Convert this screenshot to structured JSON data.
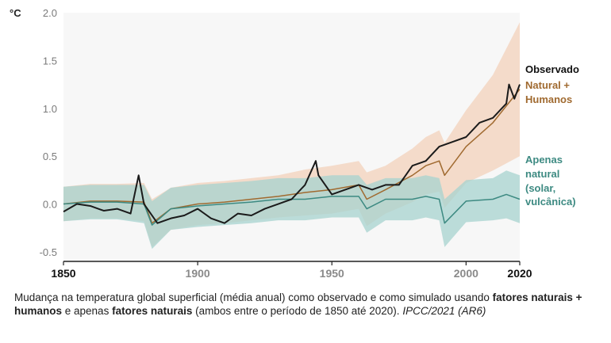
{
  "chart_data": {
    "type": "line",
    "y_unit_label": "°C",
    "ylim": [
      -0.6,
      2.0
    ],
    "yticks": [
      {
        "value": 2.0,
        "label": "2.0"
      },
      {
        "value": 1.5,
        "label": "1.5"
      },
      {
        "value": 1.0,
        "label": "1.0"
      },
      {
        "value": 0.5,
        "label": "0.5"
      },
      {
        "value": 0.0,
        "label": "0.0"
      },
      {
        "value": -0.5,
        "label": "-0.5"
      }
    ],
    "xlim": [
      1850,
      2020
    ],
    "xticks": [
      {
        "value": 1850,
        "label": "1850",
        "strong": true
      },
      {
        "value": 1900,
        "label": "1900",
        "strong": false
      },
      {
        "value": 1950,
        "label": "1950",
        "strong": false
      },
      {
        "value": 2000,
        "label": "2000",
        "strong": false
      },
      {
        "value": 2020,
        "label": "2020",
        "strong": true
      }
    ],
    "grid": false,
    "series": [
      {
        "name": "Observado",
        "color": "#1a1a1a",
        "x": [
          1850,
          1855,
          1860,
          1865,
          1870,
          1875,
          1878,
          1880,
          1885,
          1890,
          1895,
          1900,
          1905,
          1910,
          1915,
          1920,
          1925,
          1930,
          1935,
          1940,
          1944,
          1945,
          1950,
          1955,
          1960,
          1965,
          1970,
          1975,
          1980,
          1985,
          1990,
          1995,
          2000,
          2005,
          2010,
          2015,
          2016,
          2018,
          2020
        ],
        "y": [
          -0.08,
          0.0,
          -0.02,
          -0.07,
          -0.05,
          -0.1,
          0.3,
          0.0,
          -0.2,
          -0.15,
          -0.12,
          -0.05,
          -0.15,
          -0.2,
          -0.1,
          -0.12,
          -0.05,
          0.0,
          0.05,
          0.2,
          0.45,
          0.3,
          0.1,
          0.15,
          0.2,
          0.15,
          0.2,
          0.2,
          0.4,
          0.45,
          0.6,
          0.65,
          0.7,
          0.85,
          0.9,
          1.05,
          1.25,
          1.1,
          1.25
        ]
      },
      {
        "name": "Natural + Humanos",
        "color": "#a06a30",
        "band_color": "#f3d2bb",
        "x": [
          1850,
          1860,
          1870,
          1880,
          1883,
          1890,
          1900,
          1910,
          1920,
          1930,
          1940,
          1950,
          1960,
          1963,
          1970,
          1980,
          1985,
          1990,
          1992,
          2000,
          2010,
          2020
        ],
        "y": [
          0.0,
          0.03,
          0.03,
          0.02,
          -0.2,
          -0.05,
          0.0,
          0.02,
          0.05,
          0.08,
          0.12,
          0.15,
          0.2,
          0.05,
          0.15,
          0.3,
          0.4,
          0.45,
          0.3,
          0.6,
          0.85,
          1.2
        ],
        "band_half_width": [
          0.18,
          0.18,
          0.18,
          0.2,
          0.25,
          0.22,
          0.22,
          0.22,
          0.22,
          0.22,
          0.24,
          0.25,
          0.25,
          0.28,
          0.25,
          0.28,
          0.3,
          0.32,
          0.34,
          0.38,
          0.5,
          0.7
        ]
      },
      {
        "name": "Apenas natural (solar, vulcânica)",
        "color": "#3d8a82",
        "band_color": "#a7d3cf",
        "x": [
          1850,
          1860,
          1870,
          1880,
          1883,
          1890,
          1900,
          1910,
          1920,
          1930,
          1940,
          1950,
          1960,
          1963,
          1970,
          1980,
          1985,
          1990,
          1992,
          2000,
          2010,
          2015,
          2020
        ],
        "y": [
          0.0,
          0.02,
          0.02,
          0.0,
          -0.22,
          -0.05,
          -0.02,
          0.0,
          0.02,
          0.05,
          0.05,
          0.08,
          0.08,
          -0.05,
          0.05,
          0.05,
          0.08,
          0.05,
          -0.2,
          0.03,
          0.05,
          0.1,
          0.05
        ],
        "band_half_width": [
          0.18,
          0.18,
          0.18,
          0.2,
          0.25,
          0.22,
          0.22,
          0.22,
          0.22,
          0.22,
          0.22,
          0.22,
          0.22,
          0.25,
          0.22,
          0.22,
          0.22,
          0.22,
          0.25,
          0.22,
          0.22,
          0.25,
          0.25
        ]
      }
    ],
    "labels": [
      {
        "text": "Observado",
        "color": "#111111",
        "series": 0
      },
      {
        "text": "Natural +",
        "color": "#a06a30",
        "series": 1
      },
      {
        "text": "Humanos",
        "color": "#a06a30",
        "series": 1
      },
      {
        "text": "Apenas",
        "color": "#3d8a82",
        "series": 2
      },
      {
        "text": "natural",
        "color": "#3d8a82",
        "series": 2
      },
      {
        "text": "(solar,",
        "color": "#3d8a82",
        "series": 2
      },
      {
        "text": "vulcânica)",
        "color": "#3d8a82",
        "series": 2
      }
    ]
  },
  "caption": {
    "t1": "Mudança na temperatura global superficial (média anual) como observado e como simulado usando ",
    "b1": "fatores naturais + humanos",
    "t2": " e apenas ",
    "b2": "fatores naturais",
    "t3": " (ambos entre o período de 1850 até 2020). ",
    "i1": "IPCC/2021 (AR6)"
  }
}
